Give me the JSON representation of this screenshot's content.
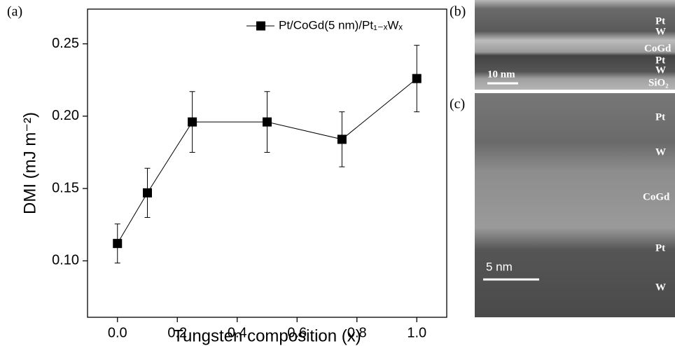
{
  "chart_data": {
    "type": "errorbar-line",
    "x_label": "Tungsten composition (x)",
    "y_label": "DMI (mJ m⁻²)",
    "panel_label": "(a)",
    "xlim": [
      -0.1,
      1.1
    ],
    "ylim": [
      0.061,
      0.274
    ],
    "xticks": [
      {
        "value": 0,
        "label": "0.0"
      },
      0.2,
      0.4,
      0.6,
      0.8,
      {
        "value": 1,
        "label": "1.0"
      }
    ],
    "yticks": [
      {
        "value": 0.1,
        "label": "0.10"
      },
      0.15,
      {
        "value": 0.2,
        "label": "0.20"
      },
      0.25
    ],
    "x": [
      0,
      0.1,
      0.25,
      0.5,
      0.75,
      1.0
    ],
    "series": [
      {
        "name": "Pt/CoGd(5 nm)/Pt₁₋ₓWₓ",
        "color": "#000000",
        "values": [
          0.112,
          0.147,
          0.196,
          0.196,
          0.184,
          0.226
        ],
        "errors": [
          0.0135,
          0.017,
          0.021,
          0.021,
          0.019,
          0.023
        ]
      }
    ],
    "legend": "upper right"
  },
  "micrographs": {
    "b": {
      "panel_label": "(b)",
      "layers": [
        "Pt",
        "W",
        "CoGd",
        "Pt",
        "W",
        "SiO₂"
      ],
      "scale_bar": "10 nm"
    },
    "c": {
      "panel_label": "(c)",
      "layers": [
        "Pt",
        "W",
        "CoGd",
        "Pt",
        "W"
      ],
      "scale_bar": "5 nm"
    }
  }
}
